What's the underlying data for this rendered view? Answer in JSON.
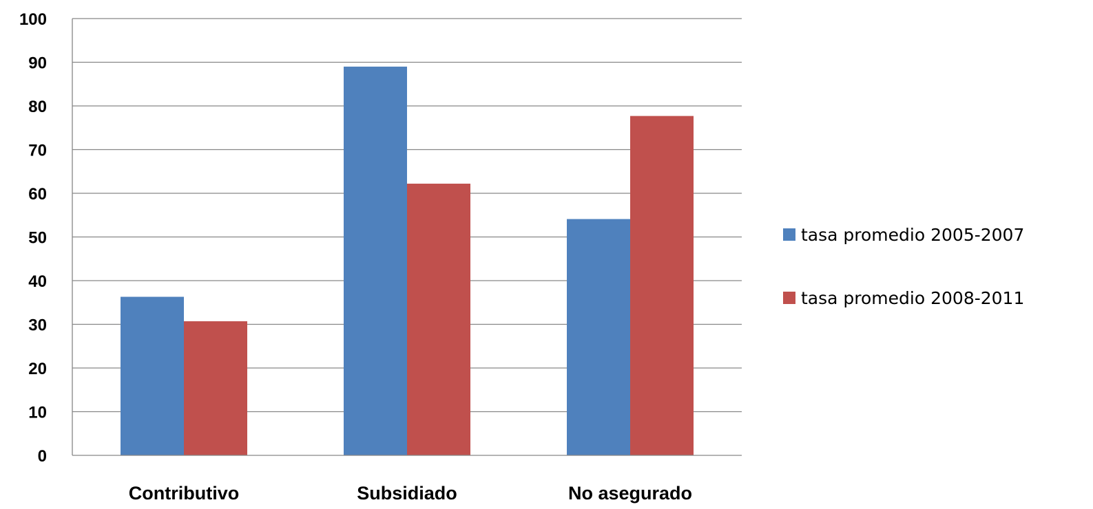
{
  "chart_data": {
    "type": "bar",
    "categories": [
      "Contributivo",
      "Subsidiado",
      "No asegurado"
    ],
    "series": [
      {
        "name": "tasa promedio 2005-2007",
        "values": [
          36.3,
          89.0,
          54.1
        ],
        "color": "#4f81bd"
      },
      {
        "name": "tasa promedio 2008-2011",
        "values": [
          30.7,
          62.2,
          77.7
        ],
        "color": "#c0504d"
      }
    ],
    "yticks": [
      "0",
      "10",
      "20",
      "30",
      "40",
      "50",
      "60",
      "70",
      "80",
      "90",
      "100"
    ],
    "ylim": [
      0,
      100
    ],
    "grid": true,
    "legend_position": "right"
  }
}
